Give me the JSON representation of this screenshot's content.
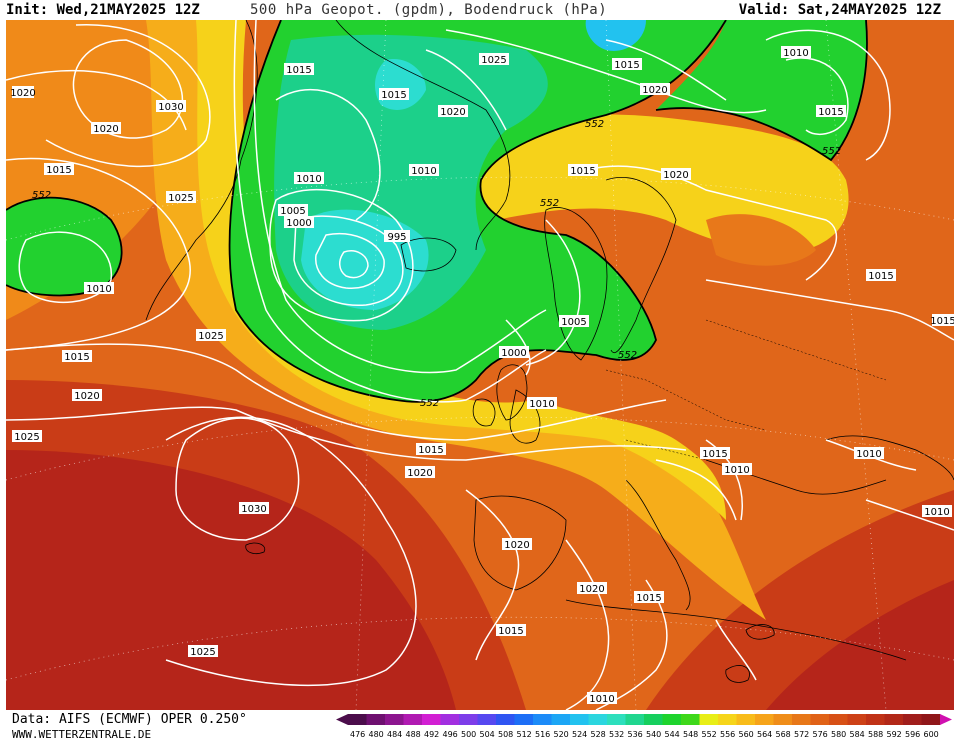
{
  "header": {
    "init": "Init: Wed,21MAY2025 12Z",
    "title": "500 hPa Geopot. (gpdm), Bodendruck (hPa)",
    "valid": "Valid: Sat,24MAY2025 12Z"
  },
  "footer": {
    "source": "Data: AIFS (ECMWF) OPER 0.250°",
    "site": "WWW.WETTERZENTRALE.DE"
  },
  "legend": {
    "values": [
      "476",
      "480",
      "484",
      "488",
      "492",
      "496",
      "500",
      "504",
      "508",
      "512",
      "516",
      "520",
      "524",
      "528",
      "532",
      "536",
      "540",
      "544",
      "548",
      "552",
      "556",
      "560",
      "564",
      "568",
      "572",
      "576",
      "580",
      "584",
      "588",
      "592",
      "596",
      "600"
    ],
    "colors": [
      "#4b0d4b",
      "#6e1070",
      "#8c158f",
      "#b01ab2",
      "#d21fd3",
      "#a22fe0",
      "#7d3de9",
      "#5648f0",
      "#2f55f2",
      "#1d6ef6",
      "#1c8bf8",
      "#1ca6f5",
      "#22c2ef",
      "#2bd6df",
      "#2ddfbd",
      "#20d68f",
      "#16cf5e",
      "#1ed42e",
      "#3ed81b",
      "#e8ee17",
      "#f6d51a",
      "#f8bc1a",
      "#f6a41a",
      "#ef8d19",
      "#e77718",
      "#e06217",
      "#d75016",
      "#cd4117",
      "#c03217",
      "#b22818",
      "#a01e1c",
      "#8f1619"
    ],
    "pointer_color": "#d010b0"
  },
  "isobar_labels": [
    "1015",
    "1030",
    "1020",
    "1015",
    "1025",
    "1010",
    "1015",
    "1020",
    "1025",
    "1025",
    "1015",
    "1020",
    "1010",
    "1005",
    "1000",
    "995",
    "1015",
    "1025",
    "1015",
    "1020",
    "1020",
    "1015",
    "1010",
    "1005",
    "1000",
    "1010",
    "1015",
    "1020",
    "1010",
    "1015",
    "1010",
    "1010",
    "1010",
    "1015",
    "1020",
    "1030",
    "1020",
    "1020",
    "1015",
    "1015",
    "1025",
    "1010",
    "1015"
  ],
  "geopotential_labels": [
    "552",
    "552",
    "552",
    "552",
    "552",
    "552"
  ]
}
